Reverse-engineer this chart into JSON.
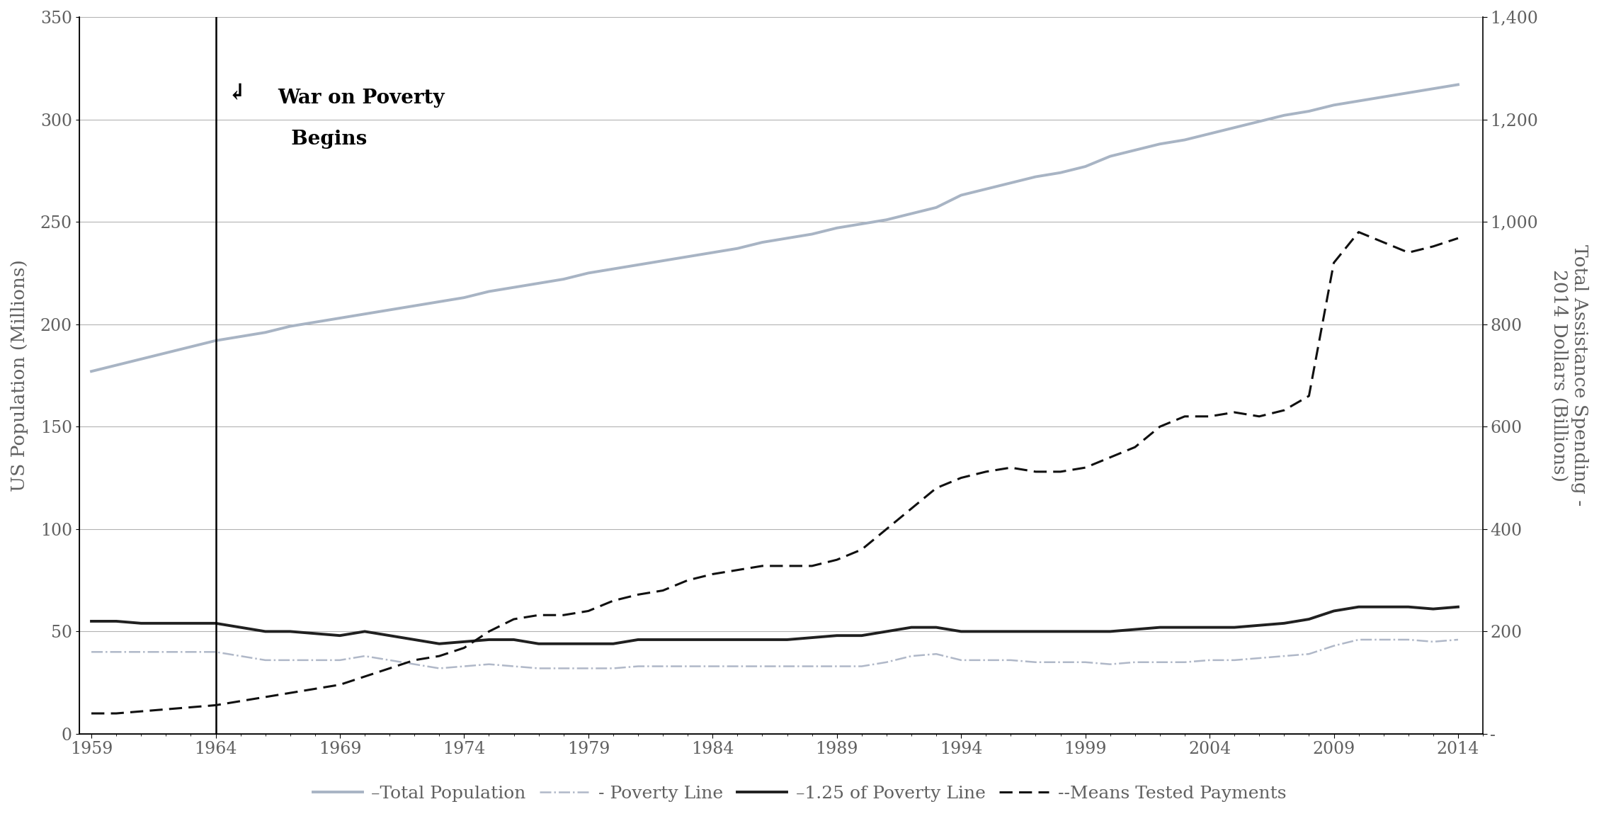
{
  "years": [
    1959,
    1960,
    1961,
    1962,
    1963,
    1964,
    1965,
    1966,
    1967,
    1968,
    1969,
    1970,
    1971,
    1972,
    1973,
    1974,
    1975,
    1976,
    1977,
    1978,
    1979,
    1980,
    1981,
    1982,
    1983,
    1984,
    1985,
    1986,
    1987,
    1988,
    1989,
    1990,
    1991,
    1992,
    1993,
    1994,
    1995,
    1996,
    1997,
    1998,
    1999,
    2000,
    2001,
    2002,
    2003,
    2004,
    2005,
    2006,
    2007,
    2008,
    2009,
    2010,
    2011,
    2012,
    2013,
    2014
  ],
  "total_population": [
    177,
    180,
    183,
    186,
    189,
    192,
    194,
    196,
    199,
    201,
    203,
    205,
    207,
    209,
    211,
    213,
    216,
    218,
    220,
    222,
    225,
    227,
    229,
    231,
    233,
    235,
    237,
    240,
    242,
    244,
    247,
    249,
    251,
    254,
    257,
    263,
    266,
    269,
    272,
    274,
    277,
    282,
    285,
    288,
    290,
    293,
    296,
    299,
    302,
    304,
    307,
    309,
    311,
    313,
    315,
    317
  ],
  "poverty_line": [
    40,
    40,
    40,
    40,
    40,
    40,
    38,
    36,
    36,
    36,
    36,
    38,
    36,
    34,
    32,
    33,
    34,
    33,
    32,
    32,
    32,
    32,
    33,
    33,
    33,
    33,
    33,
    33,
    33,
    33,
    33,
    33,
    35,
    38,
    39,
    36,
    36,
    36,
    35,
    35,
    35,
    34,
    35,
    35,
    35,
    36,
    36,
    37,
    38,
    39,
    43,
    46,
    46,
    46,
    45,
    46
  ],
  "poverty_125": [
    55,
    55,
    54,
    54,
    54,
    54,
    52,
    50,
    50,
    49,
    48,
    50,
    48,
    46,
    44,
    45,
    46,
    46,
    44,
    44,
    44,
    44,
    46,
    46,
    46,
    46,
    46,
    46,
    46,
    47,
    48,
    48,
    50,
    52,
    52,
    50,
    50,
    50,
    50,
    50,
    50,
    50,
    51,
    52,
    52,
    52,
    52,
    53,
    54,
    56,
    60,
    62,
    62,
    62,
    61,
    62
  ],
  "means_tested_billions": [
    40,
    40,
    44,
    48,
    52,
    56,
    64,
    72,
    80,
    88,
    96,
    112,
    128,
    144,
    152,
    168,
    200,
    224,
    232,
    232,
    240,
    260,
    272,
    280,
    300,
    312,
    320,
    328,
    328,
    328,
    340,
    360,
    400,
    440,
    480,
    500,
    512,
    520,
    512,
    512,
    520,
    540,
    560,
    600,
    620,
    620,
    628,
    620,
    632,
    660,
    920,
    980,
    960,
    940,
    952,
    968
  ],
  "war_on_poverty_year": 1964,
  "ylabel_left": "US Population (Millions)",
  "ylabel_right": "Total Assistance Spending -\n2014 Dollars (Billions)",
  "ylim_left": [
    0,
    350
  ],
  "ylim_right": [
    0,
    1400
  ],
  "yticks_left": [
    0,
    50,
    100,
    150,
    200,
    250,
    300,
    350
  ],
  "yticks_right_vals": [
    0,
    200,
    400,
    600,
    800,
    1000,
    1200,
    1400
  ],
  "yticks_right_labels": [
    "-",
    "200",
    "400",
    "600",
    "800",
    "1,000",
    "1,200",
    "1,400"
  ],
  "xticks": [
    1959,
    1964,
    1969,
    1974,
    1979,
    1984,
    1989,
    1994,
    1999,
    2004,
    2009,
    2014
  ],
  "color_total_pop": "#a8b4c4",
  "color_poverty_line": "#b0b8c8",
  "color_poverty_125": "#202020",
  "color_means_tested": "#101010",
  "color_grid": "#808080",
  "color_axis_text": "#606060",
  "annotation_text_line1": "War on Poverty",
  "annotation_text_line2": "  Begins",
  "xlim": [
    1958.5,
    2015.0
  ]
}
